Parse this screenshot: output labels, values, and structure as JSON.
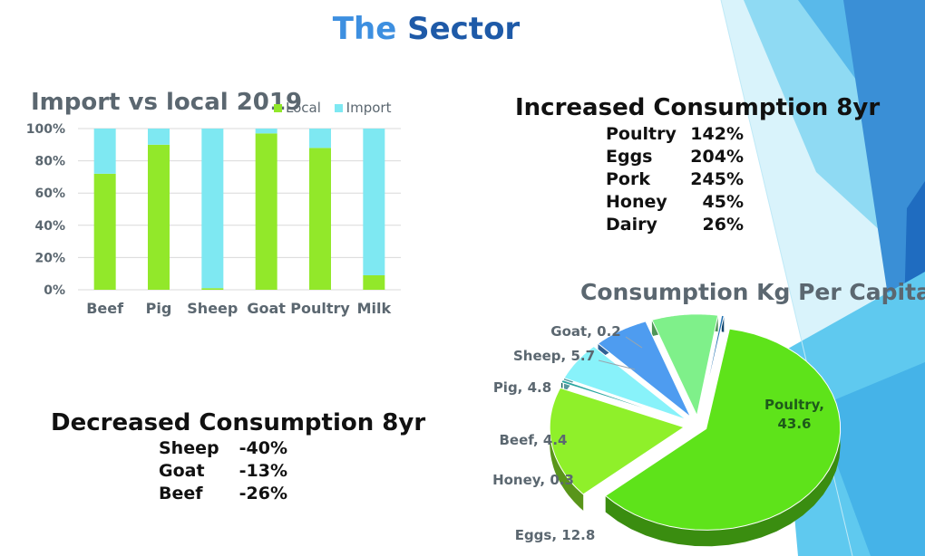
{
  "slide": {
    "title_part1": "The",
    "title_part2": "Sector",
    "colors": {
      "title_light": "#3d8fe0",
      "title_dark": "#1e5aa8"
    }
  },
  "chart_data": [
    {
      "type": "bar",
      "stacked": "100%",
      "title": "Import vs local 2019",
      "categories": [
        "Beef",
        "Pig",
        "Sheep",
        "Goat",
        "Poultry",
        "Milk"
      ],
      "series": [
        {
          "name": "Local",
          "color": "#92e82a",
          "values": [
            72,
            90,
            1,
            97,
            88,
            9
          ]
        },
        {
          "name": "Import",
          "color": "#7ee8f2",
          "values": [
            28,
            10,
            99,
            3,
            12,
            91
          ]
        }
      ],
      "y_ticks": [
        "0%",
        "20%",
        "40%",
        "60%",
        "80%",
        "100%"
      ],
      "ylim": [
        0,
        100
      ],
      "grid": true,
      "legend_placement": "top-right of title"
    },
    {
      "type": "pie",
      "title": "Consumption Kg Per Capita",
      "slices": [
        {
          "label": "Poultry",
          "value": 43.6,
          "color": "#5ee31a"
        },
        {
          "label": "Eggs",
          "value": 12.8,
          "color": "#8ff02a"
        },
        {
          "label": "Honey",
          "value": 0.3,
          "color": "#2aa6a0"
        },
        {
          "label": "Beef",
          "value": 4.4,
          "color": "#88f2fa"
        },
        {
          "label": "Pig",
          "value": 4.8,
          "color": "#4e9cf0"
        },
        {
          "label": "Sheep",
          "value": 5.7,
          "color": "#7ff08a"
        },
        {
          "label": "Goat",
          "value": 0.2,
          "color": "#1f6fb0"
        }
      ],
      "exploded": true,
      "style": "3d"
    }
  ],
  "increased": {
    "title": "Increased Consumption 8yr",
    "rows": [
      {
        "item": "Poultry",
        "value": "142%"
      },
      {
        "item": "Eggs",
        "value": "204%"
      },
      {
        "item": "Pork",
        "value": "245%"
      },
      {
        "item": "Honey",
        "value": "45%"
      },
      {
        "item": "Dairy",
        "value": "26%"
      }
    ]
  },
  "decreased": {
    "title": "Decreased Consumption 8yr",
    "rows": [
      {
        "item": "Sheep",
        "value": "-40%"
      },
      {
        "item": "Goat",
        "value": "-13%"
      },
      {
        "item": "Beef",
        "value": "-26%"
      }
    ]
  }
}
